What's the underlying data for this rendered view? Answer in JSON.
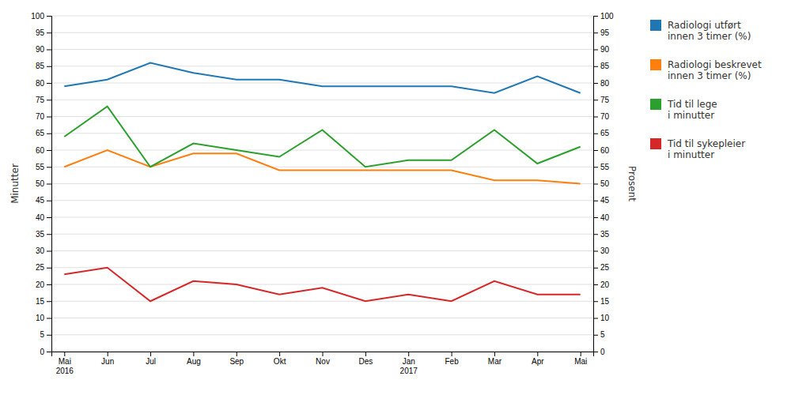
{
  "chart_data": {
    "type": "line",
    "categories": [
      "Mai\n2016",
      "Jun",
      "Jul",
      "Aug",
      "Sep",
      "Okt",
      "Nov",
      "Des",
      "Jan\n2017",
      "Feb",
      "Mar",
      "Apr",
      "Mai"
    ],
    "ylabel": "Minutter",
    "y2label": "Prosent",
    "ylim": [
      0,
      100
    ],
    "yticks": [
      0,
      5,
      10,
      15,
      20,
      25,
      30,
      35,
      40,
      45,
      50,
      55,
      60,
      65,
      70,
      75,
      80,
      85,
      90,
      95,
      100
    ],
    "y2lim": [
      0,
      100
    ],
    "y2ticks": [
      0,
      5,
      10,
      15,
      20,
      25,
      30,
      35,
      40,
      45,
      50,
      55,
      60,
      65,
      70,
      75,
      80,
      85,
      90,
      95,
      100
    ],
    "grid": true,
    "legend": "right",
    "series": [
      {
        "name": "Radiologi utført\ninnen 3 timer (%)",
        "axis": "y2",
        "values": [
          79,
          81,
          86,
          83,
          81,
          81,
          79,
          79,
          79,
          79,
          77,
          82,
          77
        ]
      },
      {
        "name": "Radiologi beskrevet\ninnen 3 timer (%)",
        "values": [
          55,
          60,
          55,
          59,
          59,
          54,
          54,
          54,
          54,
          54,
          51,
          51,
          50
        ]
      },
      {
        "name": "Tid til lege\ni minutter",
        "values": [
          64,
          73,
          55,
          62,
          60,
          58,
          66,
          55,
          57,
          57,
          66,
          56,
          61
        ]
      },
      {
        "name": "Tid til sykepleier\ni minutter",
        "values": [
          23,
          25,
          15,
          21,
          20,
          17,
          19,
          15,
          17,
          15,
          21,
          17,
          17
        ]
      }
    ]
  }
}
